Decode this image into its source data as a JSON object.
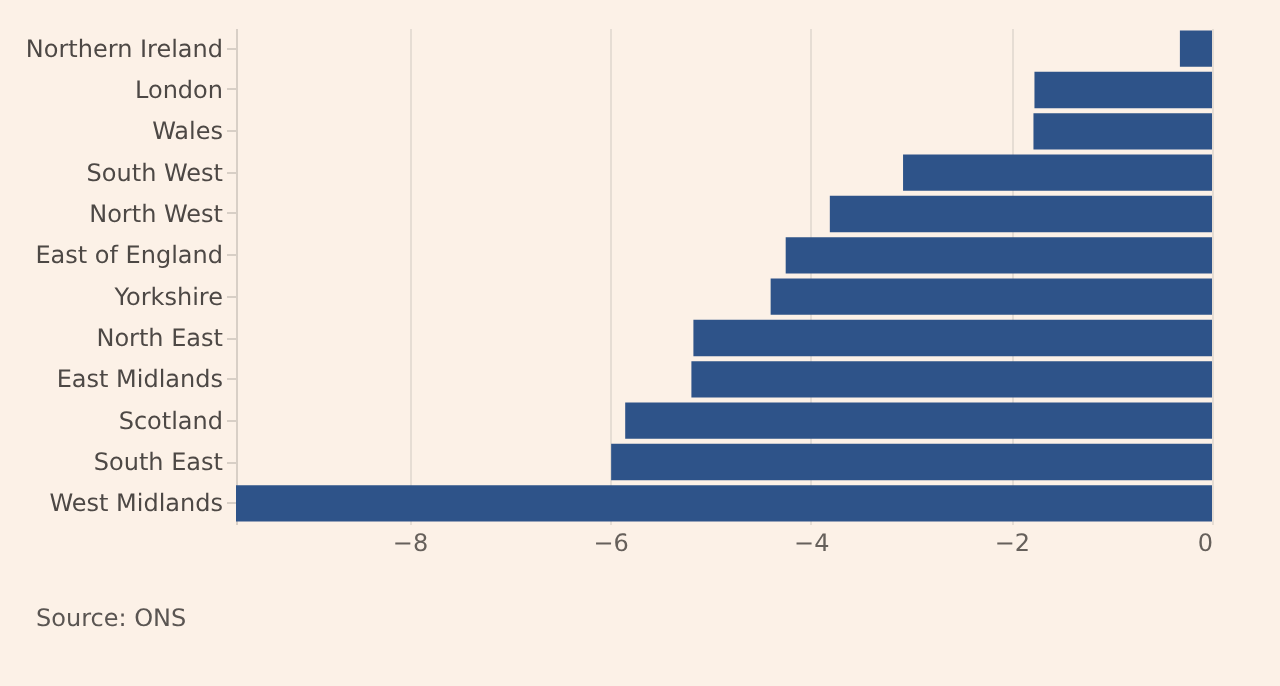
{
  "chart_data": {
    "type": "bar",
    "orientation": "horizontal",
    "categories": [
      "Northern Ireland",
      "London",
      "Wales",
      "South West",
      "North West",
      "East of England",
      "Yorkshire",
      "North East",
      "East Midlands",
      "Scotland",
      "South East",
      "West Midlands"
    ],
    "values": [
      -0.32,
      -1.77,
      -1.78,
      -3.08,
      -3.81,
      -4.25,
      -4.4,
      -5.17,
      -5.19,
      -5.85,
      -5.99,
      -9.73
    ],
    "color": "#2e5389",
    "xlim": [
      -9.73,
      0
    ],
    "xticks": [
      -8,
      -6,
      -4,
      -2,
      0
    ],
    "grid": "x",
    "annotations": [
      "Source: ONS"
    ]
  }
}
